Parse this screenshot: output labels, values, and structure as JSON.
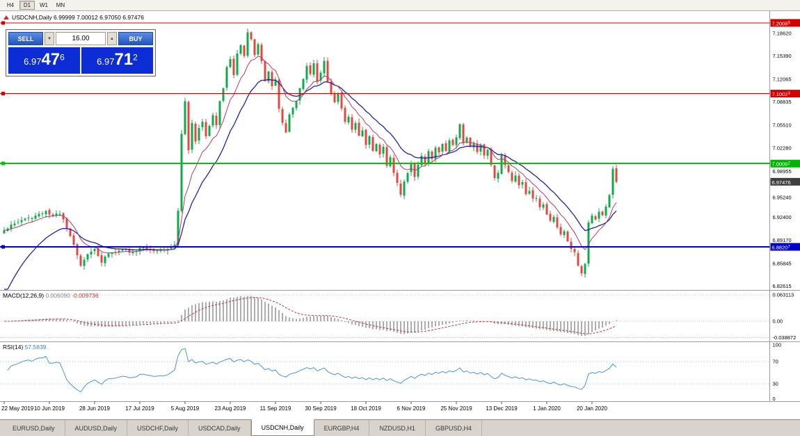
{
  "toolbar": {
    "timeframes": [
      {
        "label": "H4",
        "active": false
      },
      {
        "label": "D1",
        "active": true
      },
      {
        "label": "W1",
        "active": false
      },
      {
        "label": "MN",
        "active": false
      }
    ]
  },
  "chart_header": {
    "text": "USDCNH,Daily 6.99999 7.00012 6.97050 6.97476"
  },
  "trade_panel": {
    "sell_label": "SELL",
    "buy_label": "BUY",
    "volume": "16.00",
    "sell_price": {
      "big": "6.97",
      "mid": "47",
      "sup": "6"
    },
    "buy_price": {
      "big": "6.97",
      "mid": "71",
      "sup": "2"
    }
  },
  "price_axis": {
    "ticks": [
      "7.18620",
      "7.15390",
      "7.12065",
      "7.08835",
      "7.05510",
      "7.02280",
      "6.98955",
      "6.95240",
      "6.92400",
      "6.89170",
      "6.85845",
      "6.82615"
    ],
    "tick_values": [
      7.1862,
      7.1539,
      7.12065,
      7.08835,
      7.0551,
      7.0228,
      6.98955,
      6.9524,
      6.924,
      6.8917,
      6.85845,
      6.82615
    ]
  },
  "levels": [
    {
      "value": 7.20085,
      "label": "7.2008",
      "sup": "5",
      "color": "#d40000",
      "box": "#d40000",
      "width": 1
    },
    {
      "value": 7.10023,
      "label": "7.1002",
      "sup": "3",
      "color": "#d40000",
      "box": "#d40000",
      "width": 1
    },
    {
      "value": 7.00062,
      "label": "7.0006",
      "sup": "2",
      "color": "#00c400",
      "box": "#00b400",
      "width": 2
    },
    {
      "value": 6.97476,
      "label": "6.97476",
      "sup": "",
      "color": "#3f3f3f",
      "box": "#3f3f3f",
      "width": 0
    },
    {
      "value": 6.88207,
      "label": "6.8820",
      "sup": "7",
      "color": "#0000d0",
      "box": "#0000c8",
      "width": 2
    }
  ],
  "macd_label": {
    "name": "MACD(12,26,9)",
    "value1": "0.006090",
    "value2": "-0.009736"
  },
  "rsi_label": {
    "name": "RSI(14)",
    "value": "57.5839"
  },
  "macd_axis": {
    "ticks": [
      "0.063113",
      "0.00",
      "-0.038872"
    ],
    "tick_values": [
      0.063113,
      0,
      -0.038872
    ]
  },
  "rsi_axis": {
    "ticks": [
      "100",
      "70",
      "30",
      "0"
    ],
    "tick_values": [
      100,
      70,
      30,
      0
    ],
    "levels": [
      70,
      30
    ]
  },
  "dates": [
    "22 May 2019",
    "10 Jun 2019",
    "28 Jun 2019",
    "17 Jul 2019",
    "5 Aug 2019",
    "23 Aug 2019",
    "11 Sep 2019",
    "30 Sep 2019",
    "18 Oct 2019",
    "6 Nov 2019",
    "25 Nov 2019",
    "13 Dec 2019",
    "1 Jan 2020",
    "20 Jan 2020"
  ],
  "tabs": [
    {
      "label": "EURUSD,Daily",
      "active": false
    },
    {
      "label": "AUDUSD,Daily",
      "active": false
    },
    {
      "label": "USDCHF,Daily",
      "active": false
    },
    {
      "label": "USDCAD,Daily",
      "active": false
    },
    {
      "label": "USDCNH,Daily",
      "active": true
    },
    {
      "label": "EURGBP,H4",
      "active": false
    },
    {
      "label": "NZDUSD,H1",
      "active": false
    },
    {
      "label": "GBPUSD,H4",
      "active": false
    }
  ],
  "chart_data": {
    "type": "candlestick",
    "symbol": "USDCNH",
    "timeframe": "Daily",
    "ohlc_current": {
      "open": 6.99999,
      "high": 7.00012,
      "low": 6.9705,
      "close": 6.97476
    },
    "bid": 6.97476,
    "ask": 6.97712,
    "candle_count": 177,
    "last_close": 6.97476,
    "date_label_candle_indices": [
      0,
      13,
      26,
      39,
      52,
      65,
      78,
      91,
      104,
      117,
      130,
      143,
      156,
      169
    ],
    "close_waypoints": [
      [
        0,
        6.905
      ],
      [
        3,
        6.916
      ],
      [
        6,
        6.921
      ],
      [
        9,
        6.926
      ],
      [
        12,
        6.932
      ],
      [
        14,
        6.927
      ],
      [
        16,
        6.931
      ],
      [
        18,
        6.908
      ],
      [
        20,
        6.884
      ],
      [
        22,
        6.856
      ],
      [
        24,
        6.871
      ],
      [
        26,
        6.879
      ],
      [
        28,
        6.861
      ],
      [
        30,
        6.873
      ],
      [
        33,
        6.878
      ],
      [
        36,
        6.875
      ],
      [
        40,
        6.881
      ],
      [
        44,
        6.877
      ],
      [
        48,
        6.881
      ],
      [
        49,
        6.886
      ],
      [
        50,
        6.932
      ],
      [
        51,
        7.042
      ],
      [
        52,
        7.088
      ],
      [
        53,
        7.018
      ],
      [
        54,
        7.058
      ],
      [
        55,
        7.034
      ],
      [
        56,
        7.052
      ],
      [
        57,
        7.062
      ],
      [
        58,
        7.041
      ],
      [
        59,
        7.056
      ],
      [
        60,
        7.07
      ],
      [
        61,
        7.057
      ],
      [
        62,
        7.088
      ],
      [
        63,
        7.108
      ],
      [
        64,
        7.138
      ],
      [
        65,
        7.149
      ],
      [
        66,
        7.127
      ],
      [
        67,
        7.159
      ],
      [
        68,
        7.171
      ],
      [
        69,
        7.154
      ],
      [
        70,
        7.189
      ],
      [
        71,
        7.177
      ],
      [
        72,
        7.157
      ],
      [
        73,
        7.169
      ],
      [
        74,
        7.147
      ],
      [
        75,
        7.119
      ],
      [
        76,
        7.131
      ],
      [
        77,
        7.109
      ],
      [
        78,
        7.121
      ],
      [
        79,
        7.077
      ],
      [
        80,
        7.057
      ],
      [
        81,
        7.044
      ],
      [
        82,
        7.069
      ],
      [
        83,
        7.081
      ],
      [
        84,
        7.089
      ],
      [
        85,
        7.109
      ],
      [
        86,
        7.119
      ],
      [
        87,
        7.139
      ],
      [
        88,
        7.127
      ],
      [
        89,
        7.144
      ],
      [
        90,
        7.117
      ],
      [
        91,
        7.129
      ],
      [
        92,
        7.147
      ],
      [
        93,
        7.117
      ],
      [
        94,
        7.099
      ],
      [
        95,
        7.089
      ],
      [
        96,
        7.099
      ],
      [
        97,
        7.077
      ],
      [
        98,
        7.059
      ],
      [
        99,
        7.069
      ],
      [
        100,
        7.049
      ],
      [
        101,
        7.059
      ],
      [
        102,
        7.039
      ],
      [
        103,
        7.049
      ],
      [
        104,
        7.027
      ],
      [
        105,
        7.039
      ],
      [
        106,
        7.019
      ],
      [
        107,
        7.029
      ],
      [
        108,
        7.013
      ],
      [
        109,
        7.023
      ],
      [
        110,
        6.999
      ],
      [
        111,
        7.009
      ],
      [
        112,
        6.987
      ],
      [
        113,
        6.973
      ],
      [
        114,
        6.957
      ],
      [
        115,
        6.974
      ],
      [
        116,
        6.989
      ],
      [
        117,
        6.999
      ],
      [
        118,
        6.983
      ],
      [
        119,
        6.999
      ],
      [
        120,
        7.013
      ],
      [
        121,
        7.001
      ],
      [
        122,
        7.019
      ],
      [
        123,
        7.009
      ],
      [
        124,
        7.023
      ],
      [
        125,
        7.017
      ],
      [
        126,
        7.029
      ],
      [
        127,
        7.019
      ],
      [
        128,
        7.033
      ],
      [
        129,
        7.027
      ],
      [
        130,
        7.039
      ],
      [
        131,
        7.057
      ],
      [
        132,
        7.029
      ],
      [
        133,
        7.039
      ],
      [
        134,
        7.023
      ],
      [
        135,
        7.029
      ],
      [
        136,
        7.017
      ],
      [
        137,
        7.027
      ],
      [
        138,
        7.013
      ],
      [
        139,
        7.019
      ],
      [
        140,
        6.999
      ],
      [
        141,
        6.979
      ],
      [
        142,
        6.989
      ],
      [
        143,
        7.015
      ],
      [
        144,
        6.999
      ],
      [
        145,
        6.987
      ],
      [
        146,
        6.977
      ],
      [
        147,
        6.983
      ],
      [
        148,
        6.969
      ],
      [
        149,
        6.973
      ],
      [
        150,
        6.959
      ],
      [
        151,
        6.963
      ],
      [
        152,
        6.949
      ],
      [
        153,
        6.953
      ],
      [
        154,
        6.939
      ],
      [
        155,
        6.943
      ],
      [
        156,
        6.929
      ],
      [
        157,
        6.919
      ],
      [
        158,
        6.923
      ],
      [
        159,
        6.909
      ],
      [
        160,
        6.899
      ],
      [
        161,
        6.903
      ],
      [
        162,
        6.889
      ],
      [
        163,
        6.879
      ],
      [
        164,
        6.873
      ],
      [
        165,
        6.857
      ],
      [
        166,
        6.845
      ],
      [
        167,
        6.859
      ],
      [
        168,
        6.917
      ],
      [
        169,
        6.927
      ],
      [
        170,
        6.921
      ],
      [
        171,
        6.933
      ],
      [
        172,
        6.927
      ],
      [
        173,
        6.939
      ],
      [
        174,
        6.957
      ],
      [
        175,
        6.993
      ],
      [
        176,
        6.97476
      ]
    ],
    "indicators": [
      {
        "type": "ma",
        "speed": "slow",
        "color": "#2020b0"
      },
      {
        "type": "ma",
        "speed": "fast",
        "color": "#b83a5e"
      },
      {
        "type": "macd",
        "params": "12,26,9",
        "current_values": [
          0.00609,
          -0.009736
        ],
        "axis_range": [
          0.063113,
          -0.038872
        ],
        "histogram_color": "#adadad",
        "signal_color": "#cc3333"
      },
      {
        "type": "rsi",
        "params": "14",
        "current_value": 57.5839,
        "levels": [
          70,
          30
        ],
        "line_color": "#4a96d2"
      }
    ],
    "colors": {
      "up": "#0faa4b",
      "down": "#e04840",
      "background": "#ffffff"
    }
  }
}
